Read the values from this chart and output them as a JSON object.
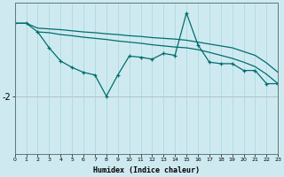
{
  "xlabel": "Humidex (Indice chaleur)",
  "background_color": "#ceeaf0",
  "grid_color": "#a8d5de",
  "line_color": "#006e6e",
  "red_line_color": "#d08080",
  "x_min": 0,
  "x_max": 23,
  "y_min": -3.5,
  "y_max": 0.5,
  "ytick_label": "-2",
  "ytick_value": -2.0,
  "line1_x": [
    0,
    1,
    2,
    3,
    4,
    5,
    6,
    7,
    8,
    9,
    10,
    11,
    12,
    13,
    14,
    15,
    16,
    17,
    18,
    19,
    20,
    21,
    22,
    23
  ],
  "line1_y": [
    -0.05,
    -0.05,
    -0.18,
    -0.2,
    -0.22,
    -0.25,
    -0.28,
    -0.3,
    -0.33,
    -0.35,
    -0.38,
    -0.4,
    -0.43,
    -0.45,
    -0.47,
    -0.5,
    -0.55,
    -0.6,
    -0.65,
    -0.7,
    -0.8,
    -0.9,
    -1.1,
    -1.35
  ],
  "line2_x": [
    2,
    3,
    4,
    5,
    6,
    7,
    8,
    9,
    10,
    11,
    12,
    13,
    14,
    15,
    16,
    17,
    18,
    19,
    20,
    21,
    22,
    23
  ],
  "line2_y": [
    -0.28,
    -0.3,
    -0.35,
    -0.38,
    -0.42,
    -0.45,
    -0.48,
    -0.52,
    -0.55,
    -0.58,
    -0.62,
    -0.65,
    -0.68,
    -0.7,
    -0.75,
    -0.82,
    -0.9,
    -0.98,
    -1.08,
    -1.2,
    -1.4,
    -1.65
  ],
  "line3_x": [
    0,
    1,
    2,
    3,
    4,
    5,
    6,
    7,
    8,
    9,
    10,
    11,
    12,
    13,
    14,
    15,
    16,
    17,
    18,
    19,
    20,
    21,
    22,
    23
  ],
  "line3_y": [
    -0.05,
    -0.05,
    -0.28,
    -0.7,
    -1.05,
    -1.22,
    -1.35,
    -1.42,
    -1.98,
    -1.42,
    -0.92,
    -0.95,
    -1.0,
    -0.85,
    -0.9,
    0.22,
    -0.62,
    -1.08,
    -1.12,
    -1.12,
    -1.3,
    -1.3,
    -1.65,
    -1.65
  ]
}
